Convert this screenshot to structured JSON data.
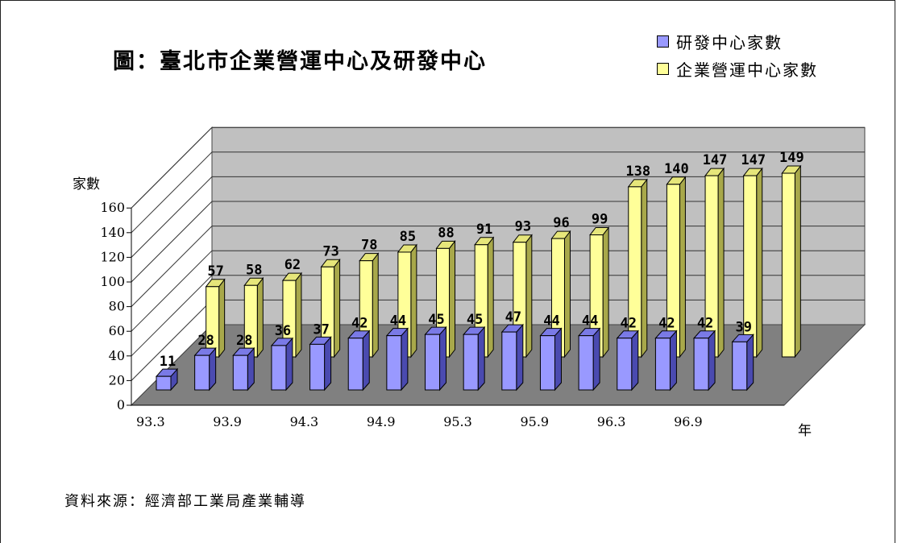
{
  "chart_data": {
    "type": "bar",
    "title": "圖：臺北市企業營運中心及研發中心",
    "ylabel": "家數",
    "xlabel": "年",
    "ylim": [
      0,
      160
    ],
    "yticks": [
      0,
      20,
      40,
      60,
      80,
      100,
      120,
      140,
      160
    ],
    "x_tick_labels": [
      "93.3",
      "93.9",
      "94.3",
      "94.9",
      "95.3",
      "95.9",
      "96.3",
      "96.9"
    ],
    "grid": true,
    "legend_position": "top-right",
    "style": "3d",
    "series": [
      {
        "name": "研發中心家數",
        "color": "#9999ff",
        "values": [
          11,
          28,
          28,
          36,
          37,
          42,
          44,
          45,
          45,
          47,
          44,
          44,
          42,
          42,
          42,
          39,
          null
        ]
      },
      {
        "name": "企業營運中心家數",
        "color": "#ffff99",
        "values": [
          null,
          57,
          58,
          62,
          73,
          78,
          85,
          88,
          91,
          93,
          96,
          99,
          138,
          140,
          147,
          147,
          149
        ]
      }
    ]
  },
  "source": "資料來源：經濟部工業局產業輔導"
}
